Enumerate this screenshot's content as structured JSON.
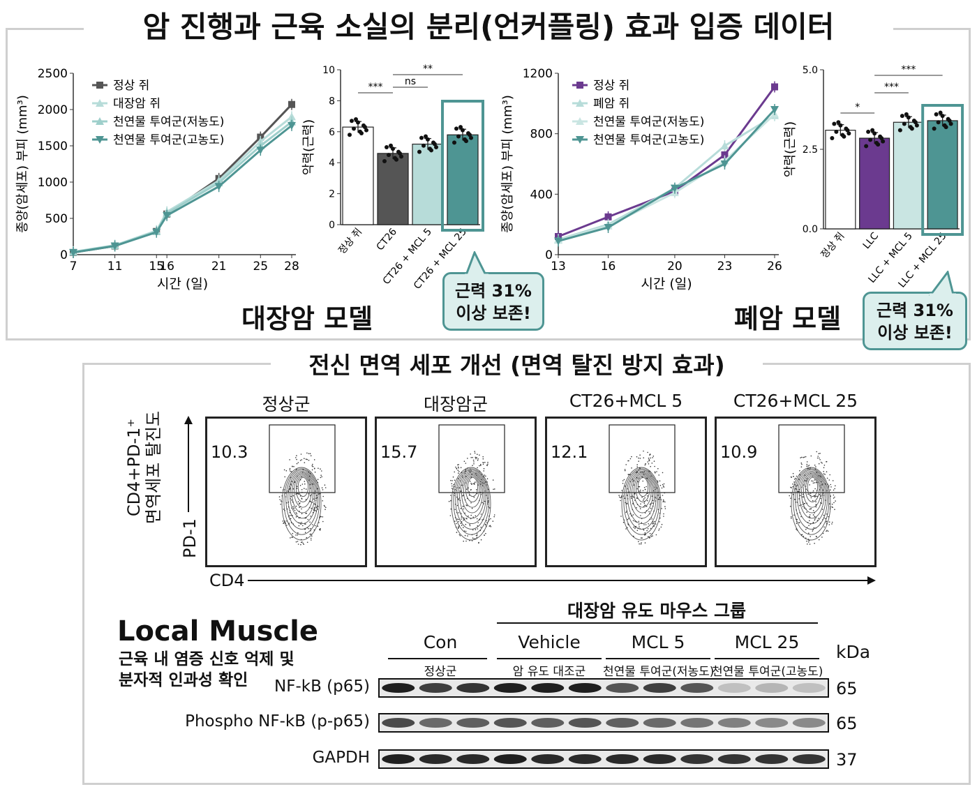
{
  "header": {
    "title": "암 진행과 근육 소실의 분리(언커플링) 효과 입증 데이터"
  },
  "colon_tumor": {
    "chart_data": {
      "type": "line",
      "x": [
        7,
        11,
        15,
        16,
        21,
        25,
        28
      ],
      "xlabel": "시간 (일)",
      "ylabel": "종양(암세포) 부피 (mm³)",
      "ylim": [
        0,
        2500
      ],
      "yticks": [
        0,
        500,
        1000,
        1500,
        2000,
        2500
      ],
      "legend_position": "top-left",
      "series": [
        {
          "name": "정상 쥐",
          "color": "#555555",
          "marker": "square",
          "values": [
            30,
            120,
            320,
            560,
            1050,
            1620,
            2070
          ]
        },
        {
          "name": "대장암 쥐",
          "color": "#b7dcd9",
          "marker": "triangle-up",
          "values": [
            40,
            130,
            330,
            590,
            1020,
            1560,
            1900
          ]
        },
        {
          "name": "천연물 투여군(저농도)",
          "color": "#9ecfcb",
          "marker": "triangle-up",
          "values": [
            35,
            125,
            320,
            570,
            990,
            1500,
            1830
          ]
        },
        {
          "name": "천연물 투여군(고농도)",
          "color": "#4e9593",
          "marker": "triangle-down",
          "values": [
            30,
            120,
            310,
            540,
            940,
            1440,
            1780
          ]
        }
      ]
    }
  },
  "colon_grip": {
    "chart_data": {
      "type": "bar",
      "categories": [
        "정상 쥐",
        "CT26",
        "CT26 + MCL 5",
        "CT26 + MCL 25"
      ],
      "values": [
        6.3,
        4.6,
        5.2,
        5.8
      ],
      "ylabel": "악력(근력)",
      "ylim": [
        0,
        10
      ],
      "yticks": [
        0,
        2,
        4,
        6,
        8,
        10
      ],
      "colors": [
        "#ffffff",
        "#555555",
        "#b7dcd9",
        "#4e9593"
      ],
      "significance": [
        "***",
        "ns",
        "**"
      ]
    }
  },
  "lung_tumor": {
    "chart_data": {
      "type": "line",
      "x": [
        13,
        16,
        20,
        23,
        26
      ],
      "xlabel": "시간 (일)",
      "ylabel": "종양(암세포) 부피 (mm³)",
      "ylim": [
        0,
        1200
      ],
      "yticks": [
        0,
        400,
        800,
        1200
      ],
      "legend_position": "top-left",
      "series": [
        {
          "name": "정상 쥐",
          "color": "#6b3a8f",
          "marker": "square",
          "values": [
            120,
            250,
            420,
            660,
            1110
          ]
        },
        {
          "name": "폐암 쥐",
          "color": "#b7dcd9",
          "marker": "triangle-up",
          "values": [
            100,
            200,
            440,
            720,
            920
          ]
        },
        {
          "name": "천연물 투여군(저농도)",
          "color": "#c9e5e2",
          "marker": "triangle-up",
          "values": [
            95,
            190,
            410,
            620,
            930
          ]
        },
        {
          "name": "천연물 투여군(고농도)",
          "color": "#4e9593",
          "marker": "triangle-down",
          "values": [
            90,
            180,
            440,
            600,
            960
          ]
        }
      ]
    }
  },
  "lung_grip": {
    "chart_data": {
      "type": "bar",
      "categories": [
        "정상 쥐",
        "LLC",
        "LLC + MCL 5",
        "LLC + MCL 25"
      ],
      "values": [
        3.1,
        2.85,
        3.35,
        3.4
      ],
      "ylabel": "악력(근력)",
      "ylim": [
        0,
        5
      ],
      "yticks": [
        "0.0",
        "2.5",
        "5.0"
      ],
      "colors": [
        "#ffffff",
        "#6b3a8f",
        "#c9e5e2",
        "#4e9593"
      ],
      "significance": [
        "*",
        "***",
        "***"
      ]
    }
  },
  "labels": {
    "colon_model": "대장암 모델",
    "lung_model": "폐암 모델",
    "callout_line1": "근력 31%",
    "callout_line2": "이상 보존!"
  },
  "immune": {
    "title": "전신 면역 세포 개선 (면역 탈진 방지 효과)",
    "panels": [
      {
        "title": "정상군",
        "value": "10.3"
      },
      {
        "title": "대장암군",
        "value": "15.7"
      },
      {
        "title": "CT26+MCL 5",
        "value": "12.1"
      },
      {
        "title": "CT26+MCL 25",
        "value": "10.9"
      }
    ],
    "ylabel_line1": "CD4+PD-1⁺",
    "ylabel_line2": "면역세포 탈진도",
    "y_axis": "PD-1",
    "x_axis": "CD4"
  },
  "western": {
    "title": "Local Muscle",
    "subtitle_line1": "근육 내 염증 신호 억제 및",
    "subtitle_line2": "분자적 인과성 확인",
    "group_header": "대장암 유도 마우스 그룹",
    "groups": [
      {
        "name": "Con",
        "sub": "정상군"
      },
      {
        "name": "Vehicle",
        "sub": "암 유도 대조군"
      },
      {
        "name": "MCL 5",
        "sub": "천연물 투여군(저농도)"
      },
      {
        "name": "MCL 25",
        "sub": "천연물 투여군(고농도)"
      }
    ],
    "kda_label": "kDa",
    "rows": [
      {
        "label": "NF-kB (p65)",
        "kda": "65",
        "intensity": [
          0.95,
          0.8,
          0.85,
          0.95,
          0.95,
          0.95,
          0.7,
          0.8,
          0.7,
          0.2,
          0.25,
          0.2
        ]
      },
      {
        "label": "Phospho NF-kB (p-p65)",
        "kda": "65",
        "intensity": [
          0.75,
          0.6,
          0.65,
          0.7,
          0.65,
          0.7,
          0.65,
          0.6,
          0.55,
          0.5,
          0.45,
          0.45
        ]
      },
      {
        "label": "GAPDH",
        "kda": "37",
        "intensity": [
          0.95,
          0.9,
          0.9,
          0.95,
          0.9,
          0.9,
          0.9,
          0.9,
          0.85,
          0.85,
          0.85,
          0.85
        ]
      }
    ]
  }
}
